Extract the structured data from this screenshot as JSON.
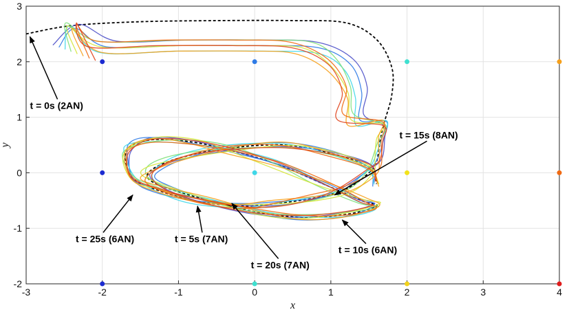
{
  "chart_data": {
    "type": "line",
    "title": "",
    "xlabel": "x",
    "ylabel": "y",
    "xlim": [
      -3,
      4
    ],
    "ylim": [
      -2,
      3
    ],
    "grid": true,
    "x_ticks": [
      "-3",
      "-2",
      "-1",
      "0",
      "1",
      "2",
      "3",
      "4"
    ],
    "y_ticks": [
      "-2",
      "-1",
      "0",
      "1",
      "2",
      "3"
    ],
    "anchor_nodes": [
      {
        "x": -2,
        "y": 2,
        "color": "#1c2bd1"
      },
      {
        "x": 0,
        "y": 2,
        "color": "#2f7be6"
      },
      {
        "x": 2,
        "y": 2,
        "color": "#3fe0d0"
      },
      {
        "x": 4,
        "y": 2,
        "color": "#f6a01a"
      },
      {
        "x": -2,
        "y": 0,
        "color": "#1c2bd1"
      },
      {
        "x": 0,
        "y": 0,
        "color": "#3fd7e8"
      },
      {
        "x": 2,
        "y": 0,
        "color": "#f2e21b"
      },
      {
        "x": 4,
        "y": 0,
        "color": "#f06a12"
      },
      {
        "x": -2,
        "y": -2,
        "color": "#1c2bd1"
      },
      {
        "x": 0,
        "y": -2,
        "color": "#3fe0d0"
      },
      {
        "x": 2,
        "y": -2,
        "color": "#f2d21b"
      },
      {
        "x": 4,
        "y": -2,
        "color": "#e01b1b"
      }
    ],
    "reference_trajectory": {
      "style": "dashed",
      "color": "#000000",
      "points": [
        [
          -3,
          2.5
        ],
        [
          -2.4,
          2.65
        ],
        [
          -1.5,
          2.72
        ],
        [
          -0.5,
          2.74
        ],
        [
          0.5,
          2.74
        ],
        [
          1.2,
          2.7
        ],
        [
          1.6,
          2.4
        ],
        [
          1.8,
          1.9
        ],
        [
          1.8,
          1.4
        ],
        [
          1.7,
          0.9
        ],
        [
          1.65,
          0.6
        ],
        [
          1.6,
          0.2
        ],
        [
          1.5,
          0.0
        ],
        [
          1.2,
          -0.3
        ],
        [
          0.8,
          -0.45
        ],
        [
          0.3,
          -0.55
        ],
        [
          -0.2,
          -0.6
        ],
        [
          -0.8,
          -0.5
        ],
        [
          -1.3,
          -0.3
        ],
        [
          -1.6,
          -0.1
        ],
        [
          -1.7,
          0.3
        ],
        [
          -1.6,
          0.5
        ],
        [
          -1.3,
          0.6
        ],
        [
          -0.8,
          0.55
        ],
        [
          -0.3,
          0.4
        ],
        [
          0.3,
          0.15
        ],
        [
          0.9,
          -0.2
        ],
        [
          1.4,
          -0.5
        ],
        [
          1.6,
          -0.6
        ],
        [
          1.2,
          -0.75
        ],
        [
          0.6,
          -0.8
        ],
        [
          0,
          -0.7
        ],
        [
          -0.6,
          -0.5
        ],
        [
          -1.1,
          -0.3
        ],
        [
          -1.4,
          -0.1
        ],
        [
          -1.3,
          0.1
        ],
        [
          -0.9,
          0.3
        ],
        [
          -0.3,
          0.45
        ],
        [
          0.4,
          0.5
        ],
        [
          1.0,
          0.35
        ],
        [
          1.5,
          0.1
        ],
        [
          1.6,
          -0.2
        ]
      ]
    },
    "agent_trajectories": [
      {
        "color": "#4b4fc8"
      },
      {
        "color": "#2f7be6"
      },
      {
        "color": "#3fd7e8"
      },
      {
        "color": "#7fe07a"
      },
      {
        "color": "#d6e63a"
      },
      {
        "color": "#f6a01a"
      },
      {
        "color": "#f06a12"
      },
      {
        "color": "#e0431b"
      }
    ],
    "annotations": [
      {
        "text": "t = 0s (2AN)",
        "point": [
          -2.95,
          2.45
        ],
        "label_at": [
          -2.95,
          1.15
        ]
      },
      {
        "text": "t = 15s (8AN)",
        "point": [
          1.05,
          -0.4
        ],
        "label_at": [
          1.9,
          0.62
        ]
      },
      {
        "text": "t = 10s (6AN)",
        "point": [
          1.15,
          -0.85
        ],
        "label_at": [
          1.1,
          -1.45
        ]
      },
      {
        "text": "t = 25s (6AN)",
        "point": [
          -1.6,
          -0.4
        ],
        "label_at": [
          -2.35,
          -1.25
        ]
      },
      {
        "text": "t = 5s (7AN)",
        "point": [
          -0.75,
          -0.6
        ],
        "label_at": [
          -1.05,
          -1.25
        ]
      },
      {
        "text": "t = 20s (7AN)",
        "point": [
          -0.3,
          -0.55
        ],
        "label_at": [
          -0.05,
          -1.72
        ]
      }
    ]
  }
}
